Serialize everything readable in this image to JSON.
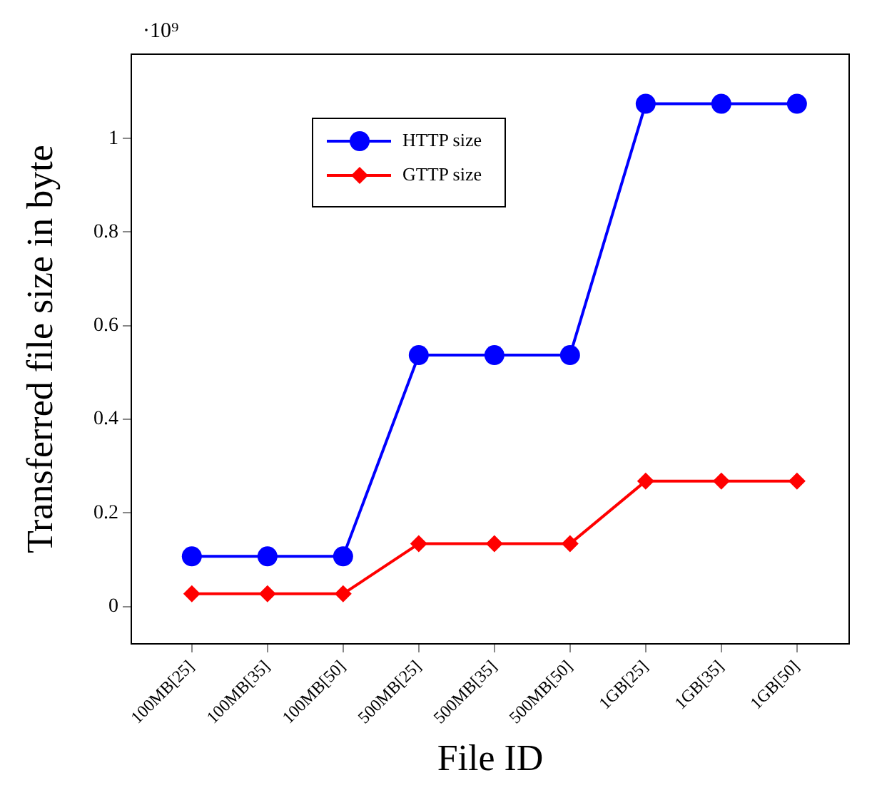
{
  "chart_data": {
    "type": "line",
    "xlabel": "File ID",
    "ylabel": "Transferred file size in byte",
    "categories": [
      "100MB[25]",
      "100MB[35]",
      "100MB[50]",
      "500MB[25]",
      "500MB[35]",
      "500MB[50]",
      "1GB[25]",
      "1GB[35]",
      "1GB[50]"
    ],
    "series": [
      {
        "name": "HTTP size",
        "color": "#0000ff",
        "marker": "circle",
        "values": [
          0.107,
          0.107,
          0.107,
          0.537,
          0.537,
          0.537,
          1.074,
          1.074,
          1.074
        ]
      },
      {
        "name": "GTTP size",
        "color": "#ff0000",
        "marker": "diamond",
        "values": [
          0.027,
          0.027,
          0.027,
          0.134,
          0.134,
          0.134,
          0.268,
          0.268,
          0.268
        ]
      }
    ],
    "ylim": [
      -0.08,
      1.18
    ],
    "yticks": [
      0,
      0.2,
      0.4,
      0.6,
      0.8,
      1
    ],
    "annotations": [
      "·10⁹"
    ],
    "legend": "top left",
    "line_style": "solid"
  }
}
